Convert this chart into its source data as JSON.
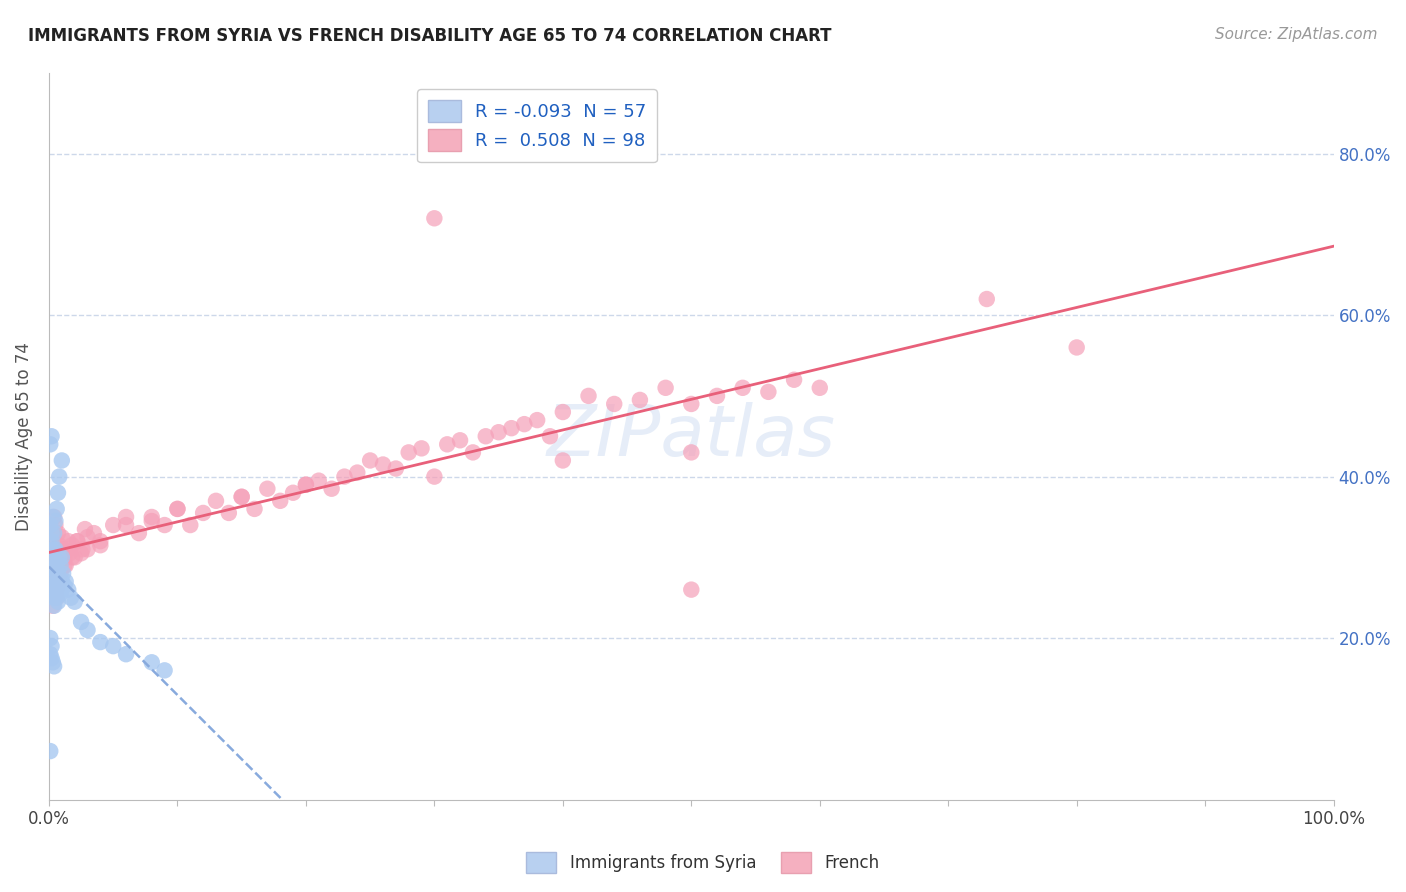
{
  "title": "IMMIGRANTS FROM SYRIA VS FRENCH DISABILITY AGE 65 TO 74 CORRELATION CHART",
  "source": "Source: ZipAtlas.com",
  "ylabel": "Disability Age 65 to 74",
  "watermark": "ZIPatlas",
  "series1_label": "Immigrants from Syria",
  "series2_label": "French",
  "series1_color": "#a8c8f0",
  "series2_color": "#f5a0b8",
  "series1_line_color": "#88aadd",
  "series2_line_color": "#e8607a",
  "series1_R": -0.093,
  "series1_N": 57,
  "series2_R": 0.508,
  "series2_N": 98,
  "xlim": [
    0.0,
    1.0
  ],
  "ylim": [
    0.0,
    0.9
  ],
  "background_color": "#ffffff",
  "grid_color": "#c8d4e8",
  "legend_R1_color": "#2060c0",
  "legend_R2_color": "#2060c0",
  "legend_N1_color": "#2060c0",
  "legend_N2_color": "#2060c0",
  "right_axis_color": "#4472c4",
  "series1_x": [
    0.001,
    0.001,
    0.002,
    0.002,
    0.002,
    0.003,
    0.003,
    0.003,
    0.003,
    0.004,
    0.004,
    0.004,
    0.004,
    0.005,
    0.005,
    0.005,
    0.006,
    0.006,
    0.006,
    0.007,
    0.007,
    0.007,
    0.008,
    0.008,
    0.009,
    0.009,
    0.01,
    0.01,
    0.011,
    0.012,
    0.013,
    0.015,
    0.017,
    0.02,
    0.003,
    0.004,
    0.005,
    0.006,
    0.007,
    0.008,
    0.01,
    0.001,
    0.002,
    0.001,
    0.002,
    0.003,
    0.004,
    0.001,
    0.002,
    0.025,
    0.03,
    0.04,
    0.05,
    0.06,
    0.08,
    0.09,
    0.001
  ],
  "series1_y": [
    0.34,
    0.3,
    0.32,
    0.28,
    0.33,
    0.31,
    0.295,
    0.27,
    0.26,
    0.285,
    0.265,
    0.25,
    0.24,
    0.31,
    0.285,
    0.255,
    0.29,
    0.27,
    0.25,
    0.28,
    0.265,
    0.245,
    0.3,
    0.26,
    0.29,
    0.255,
    0.3,
    0.27,
    0.28,
    0.265,
    0.27,
    0.26,
    0.25,
    0.245,
    0.35,
    0.33,
    0.345,
    0.36,
    0.38,
    0.4,
    0.42,
    0.2,
    0.19,
    0.18,
    0.175,
    0.17,
    0.165,
    0.44,
    0.45,
    0.22,
    0.21,
    0.195,
    0.19,
    0.18,
    0.17,
    0.16,
    0.06
  ],
  "series2_x": [
    0.001,
    0.002,
    0.003,
    0.003,
    0.004,
    0.004,
    0.005,
    0.005,
    0.006,
    0.007,
    0.007,
    0.008,
    0.009,
    0.01,
    0.01,
    0.011,
    0.012,
    0.013,
    0.015,
    0.016,
    0.018,
    0.02,
    0.022,
    0.025,
    0.028,
    0.03,
    0.035,
    0.04,
    0.05,
    0.06,
    0.07,
    0.08,
    0.09,
    0.1,
    0.11,
    0.12,
    0.13,
    0.14,
    0.15,
    0.16,
    0.17,
    0.18,
    0.19,
    0.2,
    0.21,
    0.22,
    0.23,
    0.24,
    0.25,
    0.26,
    0.27,
    0.28,
    0.29,
    0.3,
    0.31,
    0.32,
    0.33,
    0.34,
    0.35,
    0.36,
    0.37,
    0.38,
    0.39,
    0.4,
    0.42,
    0.44,
    0.46,
    0.48,
    0.5,
    0.52,
    0.54,
    0.56,
    0.58,
    0.6,
    0.005,
    0.008,
    0.01,
    0.012,
    0.015,
    0.018,
    0.022,
    0.026,
    0.03,
    0.04,
    0.06,
    0.08,
    0.1,
    0.15,
    0.2,
    0.3,
    0.4,
    0.5,
    0.003,
    0.006,
    0.73,
    0.8,
    0.5,
    0.005
  ],
  "series2_y": [
    0.295,
    0.31,
    0.28,
    0.33,
    0.27,
    0.35,
    0.285,
    0.31,
    0.26,
    0.3,
    0.33,
    0.315,
    0.28,
    0.295,
    0.325,
    0.31,
    0.3,
    0.29,
    0.32,
    0.305,
    0.315,
    0.3,
    0.32,
    0.305,
    0.335,
    0.31,
    0.33,
    0.315,
    0.34,
    0.35,
    0.33,
    0.345,
    0.34,
    0.36,
    0.34,
    0.355,
    0.37,
    0.355,
    0.375,
    0.36,
    0.385,
    0.37,
    0.38,
    0.39,
    0.395,
    0.385,
    0.4,
    0.405,
    0.42,
    0.415,
    0.41,
    0.43,
    0.435,
    0.72,
    0.44,
    0.445,
    0.43,
    0.45,
    0.455,
    0.46,
    0.465,
    0.47,
    0.45,
    0.48,
    0.5,
    0.49,
    0.495,
    0.51,
    0.49,
    0.5,
    0.51,
    0.505,
    0.52,
    0.51,
    0.26,
    0.27,
    0.3,
    0.29,
    0.31,
    0.3,
    0.32,
    0.31,
    0.325,
    0.32,
    0.34,
    0.35,
    0.36,
    0.375,
    0.39,
    0.4,
    0.42,
    0.43,
    0.24,
    0.25,
    0.62,
    0.56,
    0.26,
    0.34
  ]
}
